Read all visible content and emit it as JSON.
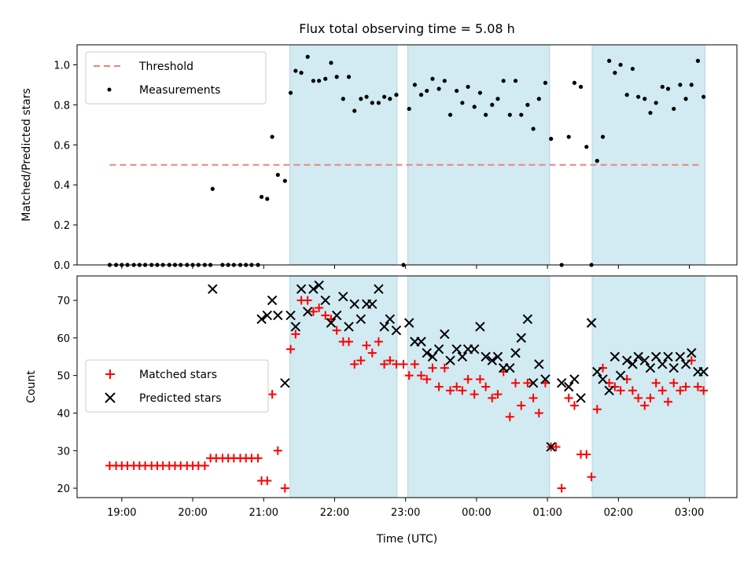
{
  "chart_data": [
    {
      "type": "scatter",
      "title": "Flux total observing time = 5.08 h",
      "ylabel": "Matched/Predicted stars",
      "ylim": [
        0,
        1.1
      ],
      "yticks": [
        "0.0",
        "0.2",
        "0.4",
        "0.6",
        "0.8",
        "1.0"
      ],
      "x_range_hours": [
        18.37,
        27.67
      ],
      "legend": {
        "placement": "upper-left",
        "entries": [
          "Threshold",
          "Measurements"
        ]
      },
      "threshold": {
        "name": "Threshold",
        "value": 0.5,
        "x_start": 18.83,
        "x_end": 27.17,
        "color": "#f08080",
        "style": "dashed"
      },
      "shaded_intervals": [
        [
          21.37,
          22.88
        ],
        [
          23.03,
          25.03
        ],
        [
          25.63,
          27.22
        ]
      ],
      "shade_color": "#add8e6",
      "series": [
        {
          "name": "Measurements",
          "color": "#000000",
          "marker": "dot",
          "x": [
            18.83,
            18.92,
            19.0,
            19.08,
            19.17,
            19.25,
            19.33,
            19.42,
            19.5,
            19.58,
            19.67,
            19.75,
            19.83,
            19.92,
            20.0,
            20.08,
            20.17,
            20.25,
            20.28,
            20.42,
            20.5,
            20.58,
            20.67,
            20.75,
            20.83,
            20.92,
            20.97,
            21.05,
            21.12,
            21.2,
            21.3,
            21.38,
            21.45,
            21.53,
            21.62,
            21.7,
            21.78,
            21.87,
            21.95,
            22.03,
            22.12,
            22.2,
            22.28,
            22.37,
            22.45,
            22.53,
            22.62,
            22.7,
            22.78,
            22.87,
            22.97,
            23.05,
            23.13,
            23.22,
            23.3,
            23.38,
            23.47,
            23.55,
            23.63,
            23.72,
            23.8,
            23.88,
            23.97,
            24.05,
            24.13,
            24.22,
            24.3,
            24.38,
            24.47,
            24.55,
            24.63,
            24.72,
            24.8,
            24.88,
            24.97,
            25.05,
            25.2,
            25.3,
            25.38,
            25.47,
            25.55,
            25.62,
            25.7,
            25.78,
            25.87,
            25.95,
            26.03,
            26.12,
            26.2,
            26.28,
            26.37,
            26.45,
            26.53,
            26.62,
            26.7,
            26.78,
            26.87,
            26.95,
            27.03,
            27.12,
            27.2
          ],
          "y": [
            0,
            0,
            0,
            0,
            0,
            0,
            0,
            0,
            0,
            0,
            0,
            0,
            0,
            0,
            0,
            0,
            0,
            0,
            0.38,
            0,
            0,
            0,
            0,
            0,
            0,
            0,
            0.34,
            0.33,
            0.64,
            0.45,
            0.42,
            0.86,
            0.97,
            0.96,
            1.04,
            0.92,
            0.92,
            0.93,
            1.01,
            0.94,
            0.83,
            0.94,
            0.77,
            0.83,
            0.84,
            0.81,
            0.81,
            0.84,
            0.83,
            0.85,
            0,
            0.78,
            0.9,
            0.85,
            0.87,
            0.93,
            0.88,
            0.92,
            0.75,
            0.87,
            0.81,
            0.89,
            0.79,
            0.86,
            0.75,
            0.8,
            0.83,
            0.92,
            0.75,
            0.92,
            0.75,
            0.8,
            0.68,
            0.83,
            0.91,
            0.63,
            0,
            0.64,
            0.91,
            0.89,
            0.59,
            0,
            0.52,
            0.64,
            1.02,
            0.96,
            1.0,
            0.85,
            0.98,
            0.84,
            0.83,
            0.76,
            0.81,
            0.89,
            0.88,
            0.78,
            0.9,
            0.83,
            0.9,
            1.02,
            0.84
          ]
        }
      ]
    },
    {
      "type": "scatter",
      "xlabel": "Time (UTC)",
      "ylabel": "Count",
      "ylim": [
        17.5,
        76.5
      ],
      "yticks": [
        "20",
        "30",
        "40",
        "50",
        "60",
        "70"
      ],
      "xticks": [
        {
          "value": 19,
          "label": "19:00"
        },
        {
          "value": 20,
          "label": "20:00"
        },
        {
          "value": 21,
          "label": "21:00"
        },
        {
          "value": 22,
          "label": "22:00"
        },
        {
          "value": 23,
          "label": "23:00"
        },
        {
          "value": 24,
          "label": "00:00"
        },
        {
          "value": 25,
          "label": "01:00"
        },
        {
          "value": 26,
          "label": "02:00"
        },
        {
          "value": 27,
          "label": "03:00"
        }
      ],
      "x_range_hours": [
        18.37,
        27.67
      ],
      "legend": {
        "placement": "center-left",
        "entries": [
          "Matched stars",
          "Predicted stars"
        ]
      },
      "shaded_intervals": [
        [
          21.37,
          22.88
        ],
        [
          23.03,
          25.03
        ],
        [
          25.63,
          27.22
        ]
      ],
      "shade_color": "#add8e6",
      "series": [
        {
          "name": "Matched stars",
          "color": "#ff0000",
          "marker": "plus",
          "x": [
            18.83,
            18.92,
            19.0,
            19.08,
            19.17,
            19.25,
            19.33,
            19.42,
            19.5,
            19.58,
            19.67,
            19.75,
            19.83,
            19.92,
            20.0,
            20.08,
            20.17,
            20.25,
            20.33,
            20.42,
            20.5,
            20.58,
            20.67,
            20.75,
            20.83,
            20.92,
            20.97,
            21.05,
            21.12,
            21.2,
            21.3,
            21.38,
            21.45,
            21.53,
            21.62,
            21.7,
            21.78,
            21.87,
            21.95,
            22.03,
            22.12,
            22.2,
            22.28,
            22.37,
            22.45,
            22.53,
            22.62,
            22.7,
            22.78,
            22.87,
            22.97,
            23.05,
            23.13,
            23.22,
            23.3,
            23.38,
            23.47,
            23.55,
            23.63,
            23.72,
            23.8,
            23.88,
            23.97,
            24.05,
            24.13,
            24.22,
            24.3,
            24.38,
            24.47,
            24.55,
            24.63,
            24.72,
            24.8,
            24.88,
            24.97,
            25.05,
            25.12,
            25.2,
            25.3,
            25.38,
            25.47,
            25.55,
            25.62,
            25.7,
            25.78,
            25.87,
            25.95,
            26.03,
            26.12,
            26.2,
            26.28,
            26.37,
            26.45,
            26.53,
            26.62,
            26.7,
            26.78,
            26.87,
            26.95,
            27.03,
            27.12,
            27.2
          ],
          "y": [
            26,
            26,
            26,
            26,
            26,
            26,
            26,
            26,
            26,
            26,
            26,
            26,
            26,
            26,
            26,
            26,
            26,
            28,
            28,
            28,
            28,
            28,
            28,
            28,
            28,
            28,
            22,
            22,
            45,
            30,
            20,
            57,
            61,
            70,
            70,
            67,
            68,
            66,
            65,
            62,
            59,
            59,
            53,
            54,
            58,
            56,
            59,
            53,
            54,
            53,
            53,
            50,
            53,
            50,
            49,
            52,
            47,
            52,
            46,
            47,
            46,
            49,
            45,
            49,
            47,
            44,
            45,
            51,
            39,
            48,
            42,
            48,
            44,
            40,
            48,
            31,
            31,
            20,
            44,
            42,
            29,
            29,
            23,
            41,
            52,
            48,
            47,
            46,
            49,
            46,
            44,
            42,
            44,
            48,
            46,
            43,
            48,
            46,
            47,
            54,
            47,
            46
          ]
        },
        {
          "name": "Predicted stars",
          "color": "#000000",
          "marker": "x",
          "x": [
            20.28,
            20.97,
            21.05,
            21.12,
            21.2,
            21.3,
            21.38,
            21.45,
            21.53,
            21.62,
            21.7,
            21.78,
            21.87,
            21.95,
            22.03,
            22.12,
            22.2,
            22.28,
            22.37,
            22.45,
            22.53,
            22.62,
            22.7,
            22.78,
            22.87,
            23.05,
            23.13,
            23.22,
            23.3,
            23.38,
            23.47,
            23.55,
            23.63,
            23.72,
            23.8,
            23.88,
            23.97,
            24.05,
            24.13,
            24.22,
            24.3,
            24.38,
            24.47,
            24.55,
            24.63,
            24.72,
            24.8,
            24.88,
            24.97,
            25.05,
            25.2,
            25.3,
            25.38,
            25.47,
            25.62,
            25.7,
            25.78,
            25.87,
            25.95,
            26.03,
            26.12,
            26.2,
            26.28,
            26.37,
            26.45,
            26.53,
            26.62,
            26.7,
            26.78,
            26.87,
            26.95,
            27.03,
            27.12,
            27.2
          ],
          "y": [
            73,
            65,
            66,
            70,
            66,
            48,
            66,
            63,
            73,
            67,
            73,
            74,
            70,
            64,
            66,
            71,
            63,
            69,
            65,
            69,
            69,
            73,
            63,
            65,
            62,
            64,
            59,
            59,
            56,
            55,
            57,
            61,
            54,
            57,
            55,
            57,
            57,
            63,
            55,
            54,
            55,
            52,
            52,
            56,
            60,
            65,
            48,
            53,
            49,
            31,
            48,
            47,
            49,
            44,
            64,
            51,
            49,
            46,
            55,
            50,
            54,
            53,
            55,
            54,
            52,
            55,
            53,
            55,
            52,
            55,
            53,
            56,
            51,
            51
          ]
        }
      ]
    }
  ]
}
